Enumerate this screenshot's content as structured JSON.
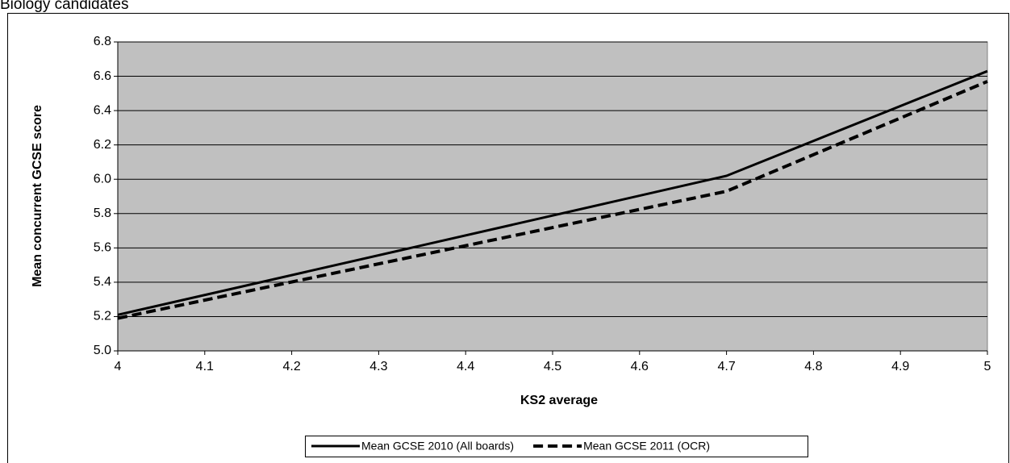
{
  "chart_data": {
    "type": "line",
    "title": "Biology candidates",
    "x_label": "KS2 average",
    "y_label": "Mean concurrent GCSE score",
    "series": [
      {
        "name": "Mean GCSE 2010 (All boards)",
        "color": "#000000",
        "dash": false,
        "x": [
          4,
          4.7,
          5
        ],
        "values": [
          5.21,
          6.02,
          6.63
        ]
      },
      {
        "name": "Mean GCSE 2011 (OCR)",
        "color": "#000000",
        "dash": true,
        "x": [
          4,
          4.7,
          5
        ],
        "values": [
          5.19,
          5.93,
          6.57
        ]
      }
    ],
    "xlim": [
      4,
      5
    ],
    "xticks": [
      4,
      4.1,
      4.2,
      4.3,
      4.4,
      4.5,
      4.6,
      4.7,
      4.8,
      4.9,
      5
    ],
    "ylim": [
      5,
      6.8
    ],
    "yticks": [
      {
        "value": 5,
        "label": "5.0"
      },
      5.2,
      5.4,
      5.6,
      5.8,
      {
        "value": 6,
        "label": "6.0"
      },
      6.2,
      6.4,
      6.6,
      6.8
    ],
    "grid": true,
    "plot_background": "#c0c0c0",
    "legend": "bottom"
  }
}
